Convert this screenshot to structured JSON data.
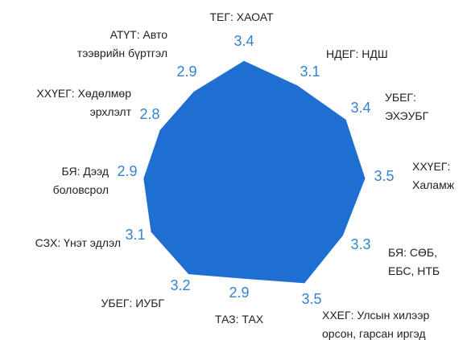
{
  "chart_data": {
    "type": "radar",
    "categories": [
      [
        "ТЕГ: ХАОАТ"
      ],
      [
        "НДЕГ: НДШ"
      ],
      [
        "УБЕГ:",
        "ЭХЭУБГ"
      ],
      [
        "ХХҮЕГ:",
        "Халамж"
      ],
      [
        "БЯ: СӨБ,",
        "ЕБС, НТБ"
      ],
      [
        "ХХЕГ: Улсын хилээр",
        "орсон, гарсан иргэд"
      ],
      [
        "ТАЗ: ТАХ"
      ],
      [
        "УБЕГ: ИУБГ"
      ],
      [
        "СЗХ: Үнэт эдлэл"
      ],
      [
        "БЯ: Дээд",
        "боловсрол"
      ],
      [
        "ХХҮЕГ: Хөдөлмөр",
        "эрхлэлт"
      ],
      [
        "АТҮТ: Авто",
        "тээврийн бүртгэл"
      ]
    ],
    "values": [
      3.4,
      3.1,
      3.4,
      3.5,
      3.3,
      3.5,
      2.9,
      3.2,
      3.1,
      2.9,
      2.8,
      2.9
    ],
    "color": "#1f6fd2",
    "label_color": "#3384d0"
  }
}
